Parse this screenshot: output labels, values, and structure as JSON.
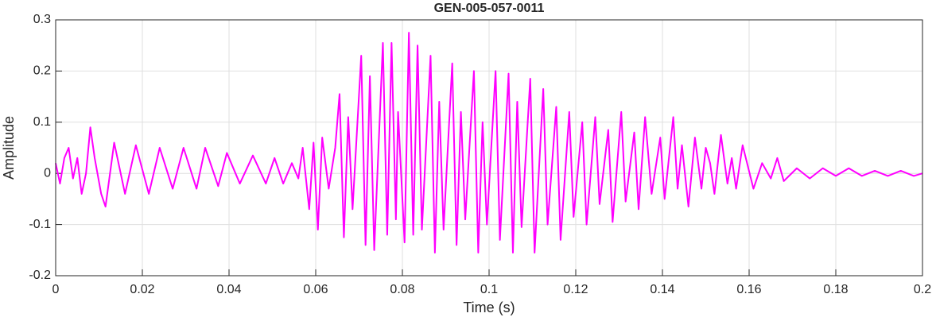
{
  "chart_data": {
    "type": "line",
    "title": "GEN-005-057-0011",
    "xlabel": "Time (s)",
    "ylabel": "Amplitude",
    "x": [
      0,
      0.001,
      0.002,
      0.003,
      0.004,
      0.005,
      0.006,
      0.007,
      0.008,
      0.009,
      0.0105,
      0.0115,
      0.0135,
      0.016,
      0.0185,
      0.0215,
      0.024,
      0.027,
      0.0295,
      0.0325,
      0.0345,
      0.0375,
      0.0395,
      0.0425,
      0.0455,
      0.0485,
      0.0505,
      0.0525,
      0.0545,
      0.056,
      0.057,
      0.0585,
      0.0595,
      0.0605,
      0.0615,
      0.063,
      0.0645,
      0.0655,
      0.0665,
      0.0675,
      0.0685,
      0.0705,
      0.0715,
      0.0725,
      0.0735,
      0.0755,
      0.0765,
      0.0775,
      0.0785,
      0.079,
      0.0805,
      0.0815,
      0.0825,
      0.0835,
      0.0845,
      0.0865,
      0.0875,
      0.0885,
      0.0895,
      0.0915,
      0.0925,
      0.0935,
      0.0945,
      0.0965,
      0.0975,
      0.0985,
      0.0995,
      0.1015,
      0.1025,
      0.1045,
      0.1055,
      0.1065,
      0.1075,
      0.1095,
      0.1105,
      0.1125,
      0.1135,
      0.1155,
      0.1165,
      0.1185,
      0.1195,
      0.1215,
      0.1225,
      0.1245,
      0.1255,
      0.1275,
      0.1285,
      0.1305,
      0.1315,
      0.1335,
      0.1345,
      0.136,
      0.1375,
      0.1395,
      0.1405,
      0.1425,
      0.1435,
      0.1445,
      0.146,
      0.1475,
      0.149,
      0.15,
      0.151,
      0.152,
      0.1535,
      0.155,
      0.156,
      0.157,
      0.1585,
      0.161,
      0.163,
      0.165,
      0.1665,
      0.168,
      0.171,
      0.174,
      0.177,
      0.18,
      0.183,
      0.186,
      0.189,
      0.192,
      0.195,
      0.198,
      0.2
    ],
    "series": [
      {
        "color": "#ff00ff",
        "values": [
          0.02,
          -0.02,
          0.03,
          0.05,
          -0.01,
          0.03,
          -0.04,
          0.0,
          0.09,
          0.03,
          -0.04,
          -0.065,
          0.06,
          -0.04,
          0.055,
          -0.04,
          0.05,
          -0.03,
          0.05,
          -0.03,
          0.05,
          -0.025,
          0.04,
          -0.02,
          0.035,
          -0.02,
          0.03,
          -0.02,
          0.02,
          -0.01,
          0.05,
          -0.07,
          0.06,
          -0.11,
          0.07,
          -0.03,
          0.05,
          0.155,
          -0.125,
          0.11,
          -0.07,
          0.23,
          -0.14,
          0.19,
          -0.15,
          0.255,
          -0.12,
          0.255,
          -0.09,
          0.12,
          -0.135,
          0.275,
          -0.12,
          0.25,
          -0.11,
          0.23,
          -0.155,
          0.14,
          -0.11,
          0.215,
          -0.14,
          0.12,
          -0.09,
          0.2,
          -0.155,
          0.1,
          -0.1,
          0.2,
          -0.13,
          0.195,
          -0.155,
          0.14,
          -0.105,
          0.185,
          -0.155,
          0.165,
          -0.1,
          0.13,
          -0.13,
          0.12,
          -0.085,
          0.1,
          -0.1,
          0.11,
          -0.06,
          0.085,
          -0.095,
          0.12,
          -0.055,
          0.08,
          -0.07,
          0.11,
          -0.04,
          0.07,
          -0.05,
          0.11,
          -0.03,
          0.055,
          -0.065,
          0.07,
          -0.03,
          0.05,
          0.02,
          -0.04,
          0.075,
          -0.02,
          0.03,
          -0.03,
          0.055,
          -0.03,
          0.02,
          -0.01,
          0.03,
          -0.015,
          0.01,
          -0.01,
          0.01,
          -0.005,
          0.01,
          -0.005,
          0.005,
          -0.005,
          0.005,
          -0.005,
          0.0
        ]
      }
    ],
    "xlim": [
      0,
      0.2
    ],
    "xticks": [
      0,
      0.02,
      0.04,
      0.06,
      0.08,
      0.1,
      0.12,
      0.14,
      0.16,
      0.18,
      0.2
    ],
    "ylim": [
      -0.2,
      0.3
    ],
    "yticks": [
      -0.2,
      -0.1,
      0,
      0.1,
      0.2,
      0.3
    ],
    "grid": true
  }
}
